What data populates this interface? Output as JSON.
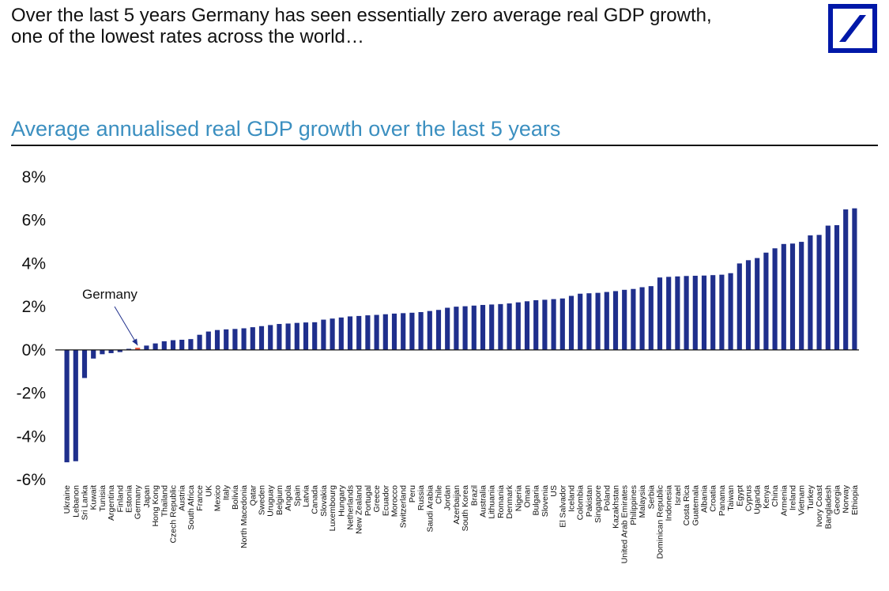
{
  "header": {
    "line1": "Over the last 5 years Germany has seen essentially zero average real GDP growth,",
    "line2": "one of the lowest rates across the world…",
    "logo_icon": "deutsche-bank-logo",
    "logo_color": "#0018a8"
  },
  "colors": {
    "bar": "#1f2f8c",
    "highlight": "#e8533a",
    "title": "#3b8fc0",
    "axis": "#111111"
  },
  "chart_data": {
    "type": "bar",
    "title": "Average annualised real GDP growth over the last 5 years",
    "xlabel": "",
    "ylabel": "",
    "ylim": [
      -6,
      8
    ],
    "yticks": [
      8,
      6,
      4,
      2,
      0,
      -2,
      -4,
      -6
    ],
    "ytick_labels": [
      "8%",
      "6%",
      "4%",
      "2%",
      "0%",
      "-2%",
      "-4%",
      "-6%"
    ],
    "grid": false,
    "highlight": "Germany",
    "annotation": "Germany",
    "categories": [
      "Ukraine",
      "Lebanon",
      "Sri Lanka",
      "Kuwait",
      "Tunisia",
      "Argentina",
      "Finland",
      "Estonia",
      "Germany",
      "Japan",
      "Hong Kong",
      "Thailand",
      "Czech Republic",
      "Austria",
      "South Africa",
      "France",
      "UK",
      "Mexico",
      "Italy",
      "Bolivia",
      "North Macedonia",
      "Qatar",
      "Sweden",
      "Uruguay",
      "Belgium",
      "Angola",
      "Spain",
      "Latvia",
      "Canada",
      "Slovakia",
      "Luxembourg",
      "Hungary",
      "Netherlands",
      "New Zealand",
      "Portugal",
      "Greece",
      "Ecuador",
      "Morocco",
      "Switzerland",
      "Peru",
      "Russia",
      "Saudi Arabia",
      "Chile",
      "Jordan",
      "Azerbaijan",
      "South Korea",
      "Brazil",
      "Australia",
      "Lithuania",
      "Romania",
      "Denmark",
      "Nigeria",
      "Oman",
      "Bulgaria",
      "Slovenia",
      "US",
      "El Salvador",
      "Iceland",
      "Colombia",
      "Pakistan",
      "Singapore",
      "Poland",
      "Kazakhstan",
      "United Arab Emirates",
      "Philippines",
      "Malaysia",
      "Serbia",
      "Dominican Republic",
      "Indonesia",
      "Israel",
      "Costa Rica",
      "Guatemala",
      "Albania",
      "Croatia",
      "Panama",
      "Taiwan",
      "Egypt",
      "Cyprus",
      "Uganda",
      "Kenya",
      "China",
      "Armenia",
      "Ireland",
      "Vietnam",
      "Turkey",
      "Ivory Coast",
      "Bangladesh",
      "Georgia",
      "Norway",
      "Ethiopia"
    ],
    "values": [
      -5.2,
      -5.15,
      -1.3,
      -0.4,
      -0.2,
      -0.15,
      -0.1,
      0.05,
      0.1,
      0.2,
      0.3,
      0.4,
      0.45,
      0.47,
      0.5,
      0.7,
      0.85,
      0.92,
      0.95,
      0.97,
      1.0,
      1.05,
      1.1,
      1.15,
      1.2,
      1.22,
      1.25,
      1.27,
      1.28,
      1.4,
      1.45,
      1.5,
      1.55,
      1.57,
      1.6,
      1.62,
      1.65,
      1.68,
      1.7,
      1.72,
      1.75,
      1.8,
      1.85,
      1.95,
      2.0,
      2.02,
      2.05,
      2.08,
      2.1,
      2.12,
      2.15,
      2.2,
      2.25,
      2.3,
      2.32,
      2.35,
      2.38,
      2.5,
      2.6,
      2.62,
      2.64,
      2.68,
      2.72,
      2.78,
      2.82,
      2.9,
      2.95,
      3.35,
      3.38,
      3.4,
      3.42,
      3.43,
      3.44,
      3.46,
      3.48,
      3.55,
      4.0,
      4.15,
      4.25,
      4.5,
      4.7,
      4.9,
      4.92,
      5.0,
      5.3,
      5.32,
      5.75,
      5.77,
      6.5,
      6.55
    ]
  }
}
